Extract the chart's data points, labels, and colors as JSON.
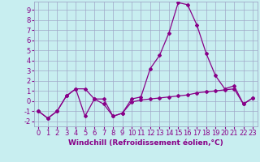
{
  "line1_x": [
    0,
    1,
    2,
    3,
    4,
    5,
    6,
    7,
    8,
    9,
    10,
    11,
    12,
    13,
    14,
    15,
    16,
    17,
    18,
    19,
    20,
    21,
    22,
    23
  ],
  "line1_y": [
    -1.0,
    -1.7,
    -1.0,
    0.5,
    1.2,
    1.2,
    0.2,
    0.2,
    -1.5,
    -1.2,
    0.2,
    0.4,
    3.2,
    4.5,
    6.7,
    9.7,
    9.5,
    7.5,
    4.7,
    2.5,
    1.2,
    1.5,
    -0.3,
    0.3
  ],
  "line2_x": [
    0,
    1,
    2,
    3,
    4,
    5,
    6,
    7,
    8,
    9,
    10,
    11,
    12,
    13,
    14,
    15,
    16,
    17,
    18,
    19,
    20,
    21,
    22,
    23
  ],
  "line2_y": [
    -1.0,
    -1.7,
    -1.0,
    0.5,
    1.2,
    -1.5,
    0.2,
    -0.3,
    -1.5,
    -1.2,
    -0.1,
    0.1,
    0.2,
    0.3,
    0.4,
    0.5,
    0.6,
    0.8,
    0.9,
    1.0,
    1.1,
    1.2,
    -0.3,
    0.3
  ],
  "color": "#880088",
  "bg_color": "#c8eef0",
  "xlabel": "Windchill (Refroidissement éolien,°C)",
  "ylim": [
    -2.5,
    9.8
  ],
  "xlim": [
    -0.5,
    23.5
  ],
  "yticks": [
    -2,
    -1,
    0,
    1,
    2,
    3,
    4,
    5,
    6,
    7,
    8,
    9
  ],
  "xticks": [
    0,
    1,
    2,
    3,
    4,
    5,
    6,
    7,
    8,
    9,
    10,
    11,
    12,
    13,
    14,
    15,
    16,
    17,
    18,
    19,
    20,
    21,
    22,
    23
  ],
  "grid_color": "#a0a8c8",
  "marker": "D",
  "markersize": 2.0,
  "linewidth": 0.9,
  "xlabel_fontsize": 6.5,
  "tick_fontsize": 6.0
}
